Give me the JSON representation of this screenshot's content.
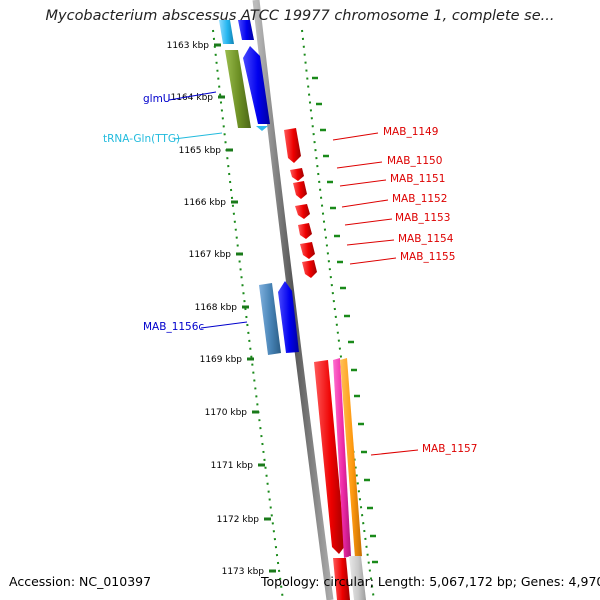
{
  "title": "Mycobacterium abscessus ATCC 19977 chromosome 1, complete se...",
  "footer": {
    "accession": "Accession: NC_010397",
    "topology": "Topology: circular; Length: 5,067,172 bp; Genes: 4,970"
  },
  "ruler": [
    "1163 kbp",
    "1164 kbp",
    "1165 kbp",
    "1166 kbp",
    "1167 kbp",
    "1168 kbp",
    "1169 kbp",
    "1170 kbp",
    "1171 kbp",
    "1172 kbp",
    "1173 kbp"
  ],
  "gene_labels": [
    {
      "text": "glmU",
      "color": "#0000cc"
    },
    {
      "text": "tRNA-Gln(TTG)",
      "color": "#22bbdd"
    },
    {
      "text": "MAB_1149",
      "color": "#dd0000"
    },
    {
      "text": "MAB_1150",
      "color": "#dd0000"
    },
    {
      "text": "MAB_1151",
      "color": "#dd0000"
    },
    {
      "text": "MAB_1152",
      "color": "#dd0000"
    },
    {
      "text": "MAB_1153",
      "color": "#dd0000"
    },
    {
      "text": "MAB_1154",
      "color": "#dd0000"
    },
    {
      "text": "MAB_1155",
      "color": "#dd0000"
    },
    {
      "text": "MAB_1156c",
      "color": "#0000cc"
    },
    {
      "text": "MAB_1157",
      "color": "#dd0000"
    }
  ]
}
